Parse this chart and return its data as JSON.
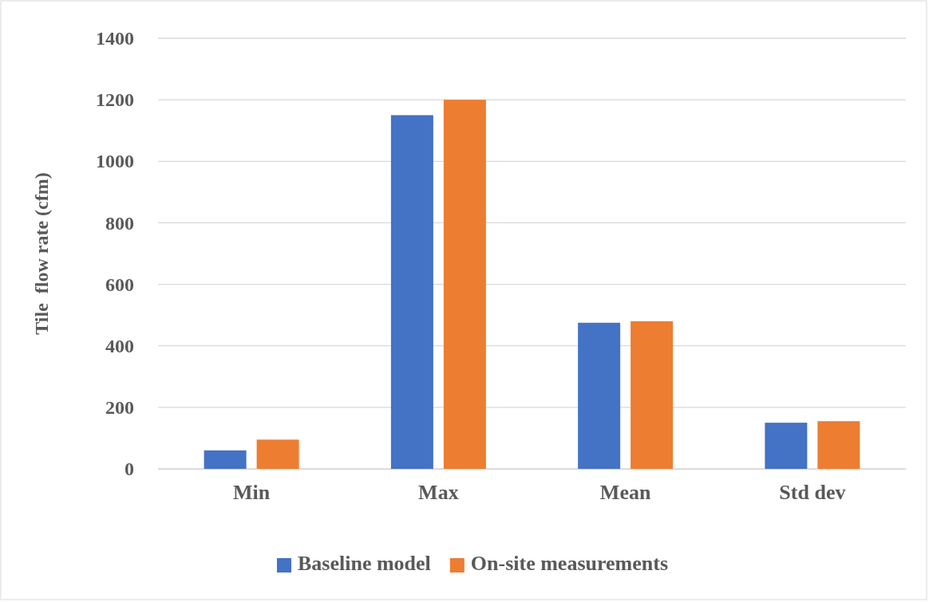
{
  "chart_data": {
    "type": "bar",
    "ylabel": "Tile  flow rate (cfm)",
    "categories": [
      "Min",
      "Max",
      "Mean",
      "Std dev"
    ],
    "series": [
      {
        "name": "Baseline model",
        "color": "#4472c4",
        "values": [
          60,
          1150,
          475,
          150
        ]
      },
      {
        "name": "On-site measurements",
        "color": "#ed7d31",
        "values": [
          95,
          1200,
          480,
          155
        ]
      }
    ],
    "ylim": [
      0,
      1400
    ],
    "yticks": [
      0,
      200,
      400,
      600,
      800,
      1000,
      1200,
      1400
    ],
    "grid": "y",
    "legend": "bottom"
  }
}
